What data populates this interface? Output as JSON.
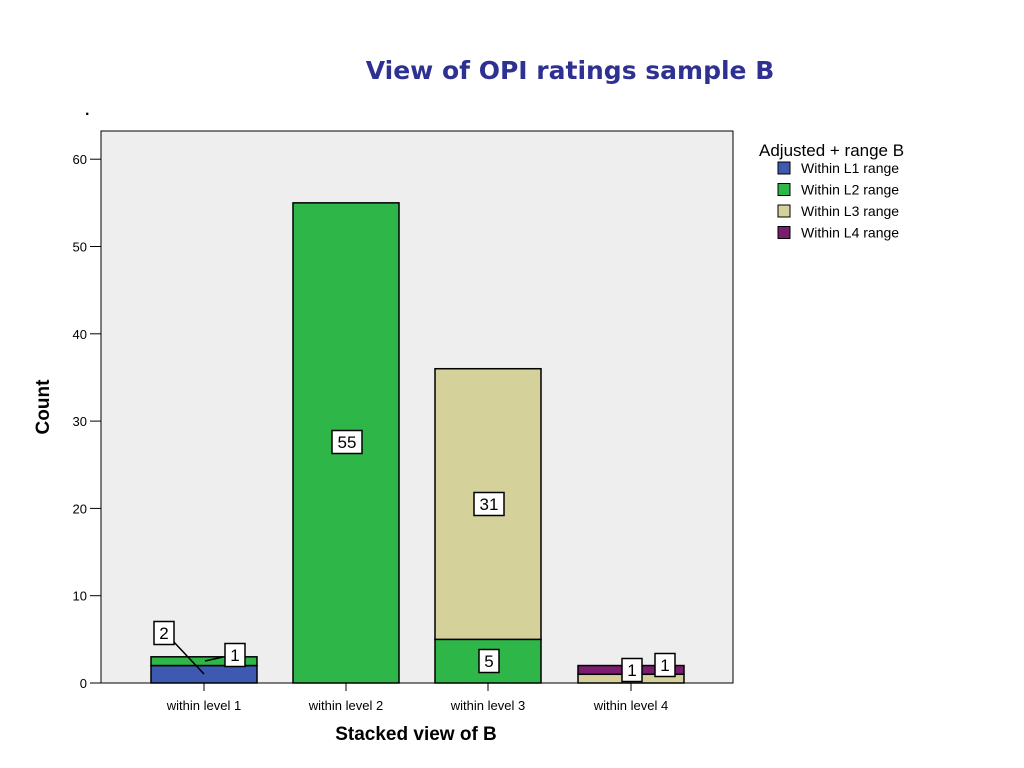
{
  "title": "View of OPI ratings sample B",
  "title_mark": ".",
  "colors": {
    "title": "#2e3192",
    "plot_bg": "#eeeeee",
    "L1": "#3e5ab0",
    "L2": "#2fb648",
    "L3": "#d5d19a",
    "L4": "#7b1d6e"
  },
  "chart_data": {
    "type": "bar",
    "stacked": true,
    "categories": [
      "within level 1",
      "within level 2",
      "within level 3",
      "within level 4"
    ],
    "series": [
      {
        "name": "Within L1 range",
        "color_key": "L1",
        "values": [
          2,
          0,
          0,
          0
        ]
      },
      {
        "name": "Within L2 range",
        "color_key": "L2",
        "values": [
          1,
          55,
          5,
          0
        ]
      },
      {
        "name": "Within L3 range",
        "color_key": "L3",
        "values": [
          0,
          0,
          31,
          1
        ]
      },
      {
        "name": "Within L4 range",
        "color_key": "L4",
        "values": [
          0,
          0,
          0,
          1
        ]
      }
    ],
    "xlabel": "Stacked view of B",
    "ylabel": "Count",
    "ylim": [
      0,
      63
    ],
    "yticks": [
      0,
      10,
      20,
      30,
      40,
      50,
      60
    ],
    "legend_title": "Adjusted + range B",
    "legend_position": "right",
    "grid": false
  }
}
